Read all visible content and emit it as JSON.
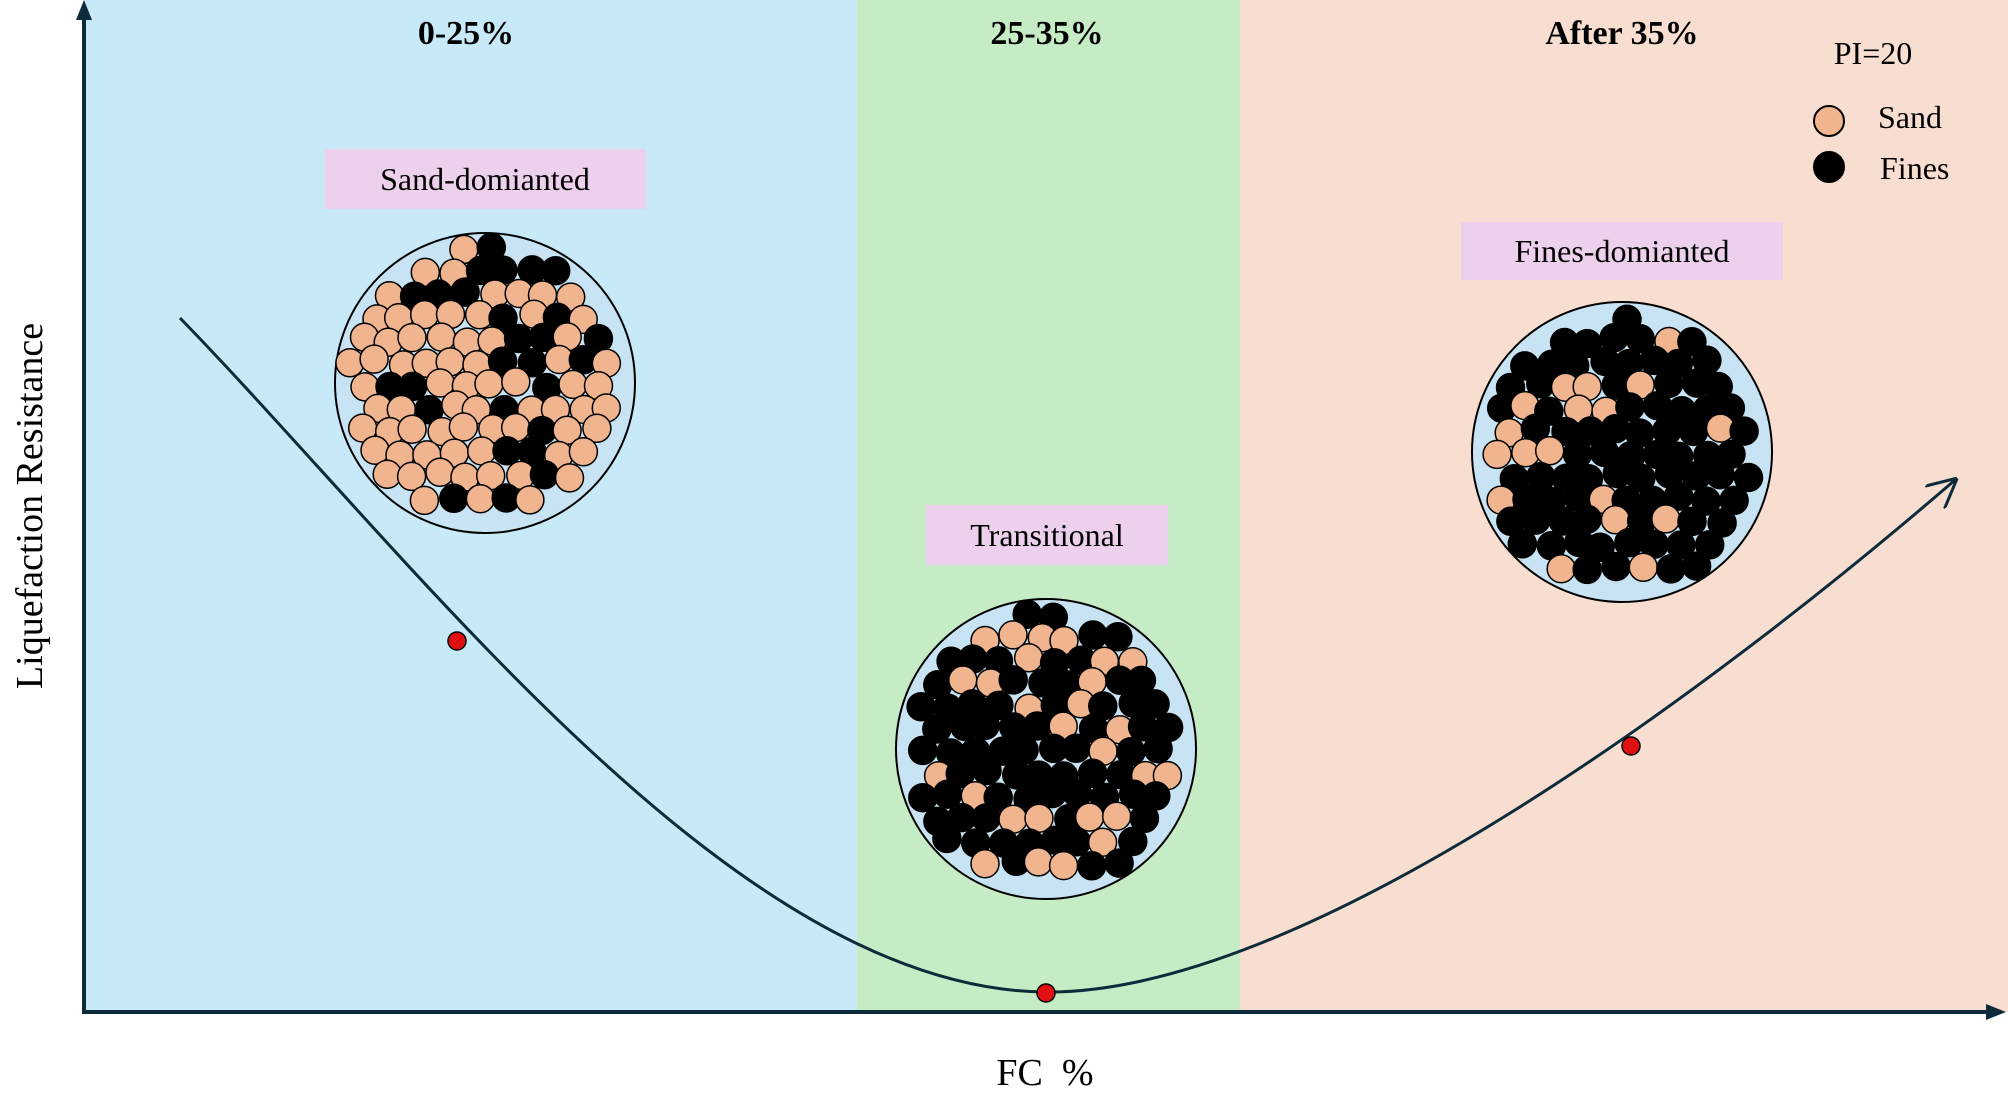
{
  "diagram": {
    "axes": {
      "x_label": "FC  %",
      "y_label": "Liquefaction Resistance"
    },
    "zones": [
      {
        "title": "0-25%",
        "color": "#c8eaf8"
      },
      {
        "title": "25-35%",
        "color": "#c5ecc5"
      },
      {
        "title": "After 35%",
        "color": "#f8ded0"
      }
    ],
    "legend": {
      "title": "PI=20",
      "items": [
        {
          "label": "Sand",
          "color": "#f0b48e"
        },
        {
          "label": "Fines",
          "color": "#000000"
        }
      ]
    },
    "regimes": [
      {
        "label": "Sand-domianted",
        "mix": "sand-rich"
      },
      {
        "label": "Transitional",
        "mix": "mixed"
      },
      {
        "label": "Fines-domianted",
        "mix": "fines-rich"
      }
    ],
    "colors": {
      "tag_background": "#ecd0ec",
      "curve": "#0d2b3a",
      "marker": "#e01010",
      "sample_background": "#c8e4f4"
    }
  }
}
